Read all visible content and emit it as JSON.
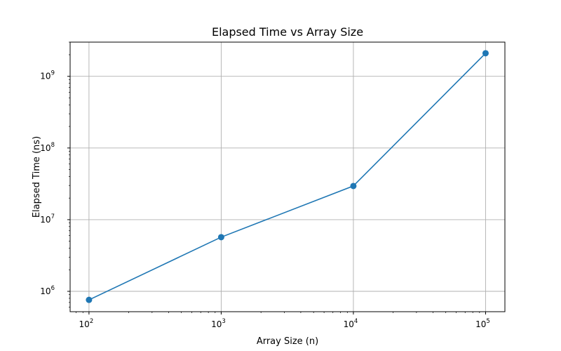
{
  "chart_data": {
    "type": "line",
    "title": "Elapsed Time vs Array Size",
    "xlabel": "Array Size (n)",
    "ylabel": "Elapsed Time (ns)",
    "x_scale": "log",
    "y_scale": "log",
    "xlim": [
      72,
      140000
    ],
    "ylim": [
      520000,
      3000000000
    ],
    "x_ticks": [
      {
        "value": 100,
        "base": "10",
        "exp": "2"
      },
      {
        "value": 1000,
        "base": "10",
        "exp": "3"
      },
      {
        "value": 10000,
        "base": "10",
        "exp": "4"
      },
      {
        "value": 100000,
        "base": "10",
        "exp": "5"
      }
    ],
    "y_ticks": [
      {
        "value": 1000000,
        "base": "10",
        "exp": "6"
      },
      {
        "value": 10000000,
        "base": "10",
        "exp": "7"
      },
      {
        "value": 100000000,
        "base": "10",
        "exp": "8"
      },
      {
        "value": 1000000000,
        "base": "10",
        "exp": "9"
      }
    ],
    "grid": true,
    "series": [
      {
        "color": "#1f77b4",
        "marker": "circle",
        "x": [
          100,
          1000,
          10000,
          100000
        ],
        "y": [
          760000,
          5700000,
          29500000,
          2100000000
        ]
      }
    ]
  }
}
